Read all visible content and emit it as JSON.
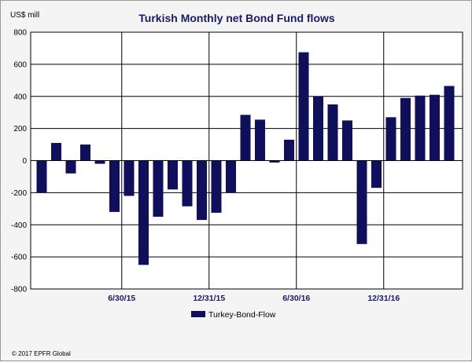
{
  "chart_data": {
    "type": "bar",
    "title": "Turkish Monthly net Bond Fund flows",
    "ylabel": "US$ mill",
    "ylim": [
      -800,
      800
    ],
    "yticks": [
      800,
      600,
      400,
      200,
      0,
      -200,
      -400,
      -600,
      -800
    ],
    "x_tick_labels": [
      {
        "after_bar": 5,
        "label": "6/30/15"
      },
      {
        "after_bar": 11,
        "label": "12/31/15"
      },
      {
        "after_bar": 17,
        "label": "6/30/16"
      },
      {
        "after_bar": 23,
        "label": "12/31/16"
      }
    ],
    "grid": true,
    "legend_position": "bottom",
    "series": [
      {
        "name": "Turkey-Bond-Flow",
        "color": "#0f0f5c",
        "values": [
          -200,
          110,
          -80,
          100,
          -20,
          -320,
          -220,
          -650,
          -350,
          -180,
          -285,
          -370,
          -325,
          -200,
          285,
          255,
          -12,
          130,
          675,
          400,
          350,
          250,
          -520,
          -170,
          270,
          390,
          405,
          410,
          465
        ]
      }
    ]
  },
  "footer": {
    "copyright": "© 2017 EPFR Global"
  }
}
